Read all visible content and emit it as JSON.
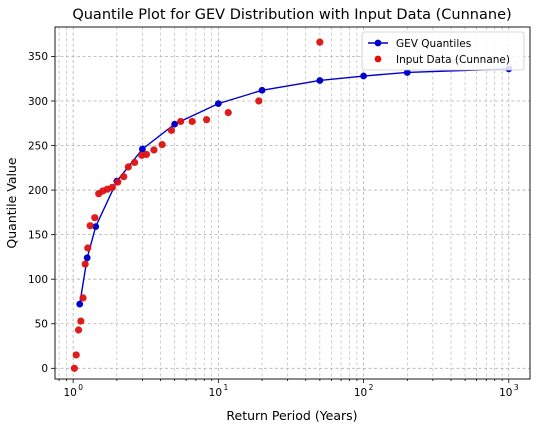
{
  "chart_data": {
    "type": "scatter",
    "title": "Quantile Plot for GEV Distribution with Input Data (Cunnane)",
    "xlabel": "Return Period (Years)",
    "ylabel": "Quantile Value",
    "x_scale": "log",
    "xlim": [
      0.75,
      1400
    ],
    "ylim": [
      -12,
      383
    ],
    "x_ticks": [
      {
        "value": 1,
        "base": "10",
        "exp": "0"
      },
      {
        "value": 10,
        "base": "10",
        "exp": "1"
      },
      {
        "value": 100,
        "base": "10",
        "exp": "2"
      },
      {
        "value": 1000,
        "base": "10",
        "exp": "3"
      }
    ],
    "y_ticks": [
      0,
      50,
      100,
      150,
      200,
      250,
      300,
      350
    ],
    "grid": true,
    "legend_position": "top-right",
    "series": [
      {
        "name": "GEV Quantiles",
        "kind": "line-markers",
        "color": "#0000cc",
        "points": [
          {
            "x": 1.11,
            "y": 72
          },
          {
            "x": 1.25,
            "y": 124
          },
          {
            "x": 1.43,
            "y": 159
          },
          {
            "x": 2,
            "y": 210
          },
          {
            "x": 3,
            "y": 246
          },
          {
            "x": 5,
            "y": 274
          },
          {
            "x": 10,
            "y": 297
          },
          {
            "x": 20,
            "y": 312
          },
          {
            "x": 50,
            "y": 323
          },
          {
            "x": 100,
            "y": 328
          },
          {
            "x": 200,
            "y": 332
          },
          {
            "x": 1000,
            "y": 336
          }
        ]
      },
      {
        "name": "Input Data (Cunnane)",
        "kind": "scatter",
        "color": "#dd1111",
        "points": [
          {
            "x": 1.02,
            "y": 0
          },
          {
            "x": 1.05,
            "y": 15
          },
          {
            "x": 1.09,
            "y": 43
          },
          {
            "x": 1.13,
            "y": 53
          },
          {
            "x": 1.17,
            "y": 79
          },
          {
            "x": 1.21,
            "y": 117
          },
          {
            "x": 1.26,
            "y": 135
          },
          {
            "x": 1.31,
            "y": 160
          },
          {
            "x": 1.41,
            "y": 169
          },
          {
            "x": 1.5,
            "y": 196
          },
          {
            "x": 1.6,
            "y": 199
          },
          {
            "x": 1.72,
            "y": 201
          },
          {
            "x": 1.86,
            "y": 203
          },
          {
            "x": 2.03,
            "y": 209
          },
          {
            "x": 2.23,
            "y": 215
          },
          {
            "x": 2.4,
            "y": 226
          },
          {
            "x": 2.65,
            "y": 231
          },
          {
            "x": 2.97,
            "y": 239
          },
          {
            "x": 3.2,
            "y": 240
          },
          {
            "x": 3.6,
            "y": 245
          },
          {
            "x": 4.1,
            "y": 251
          },
          {
            "x": 4.75,
            "y": 267
          },
          {
            "x": 5.5,
            "y": 277
          },
          {
            "x": 6.6,
            "y": 277
          },
          {
            "x": 8.3,
            "y": 279
          },
          {
            "x": 11.7,
            "y": 287
          },
          {
            "x": 19,
            "y": 300
          },
          {
            "x": 50,
            "y": 366
          }
        ]
      }
    ]
  }
}
